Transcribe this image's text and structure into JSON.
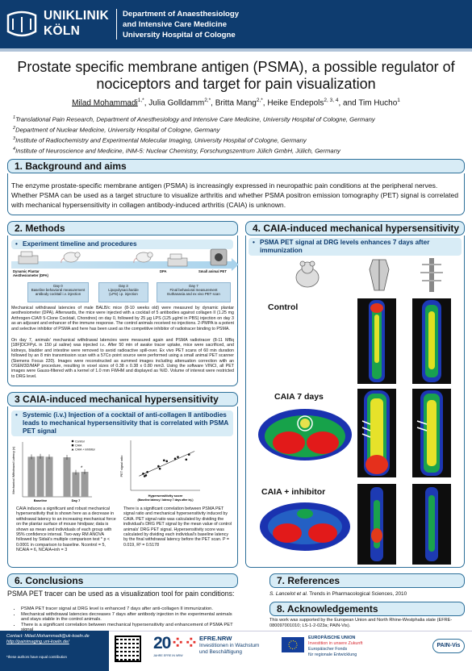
{
  "header": {
    "institution_line1": "UNIKLINIK",
    "institution_line2": "KÖLN",
    "dept_line1": "Department of Anaesthesiology",
    "dept_line2": "and Intensive Care Medicine",
    "dept_line3": "University Hospital of Cologne"
  },
  "title_line1": "Prostate specific membrane antigen (PSMA), a possible regulator of",
  "title_line2": "nociceptors and target for pain visualization",
  "authors": {
    "a1": "Milad Mohammadi",
    "a1_sup": "1,*",
    "a2": ", Julia Golldamm",
    "a2_sup": "2,*",
    "a3": ", Britta Mang",
    "a3_sup": "2,*",
    "a4": ", Heike Endepols",
    "a4_sup": "2, 3, 4",
    "a5": ", and Tim Hucho",
    "a5_sup": "1"
  },
  "affiliations": [
    {
      "num": "1",
      "text": "Translational Pain Research, Department of Anesthesiology and Intensive Care Medicine, University Hospital of Cologne, Germany"
    },
    {
      "num": "2",
      "text": "Department of Nuclear Medicine, University Hospital of Cologne, Germany"
    },
    {
      "num": "3",
      "text": "Institute of Radiochemistry and Experimental Molecular Imaging, University Hospital of Cologne, Germany"
    },
    {
      "num": "4",
      "text": "Institute of Neuroscience and Medicine, INM-5: Nuclear Chemistry, Forschungszentrum Jülich GmbH, Jülich, Germany"
    }
  ],
  "sections": {
    "s1_title": "1. Background and aims",
    "s1_text": "The enzyme prostate-specific membrane antigen (PSMA) is increasingly expressed in neuropathic pain conditions at the peripheral nerves. Whether PSMA can be used as a target structure to visualize arthritis and whether PSMA positron emission tomography (PET) signal is correlated with mechanical hypersensitivity in collagen antibody-induced arthritis (CAIA) is unknown.",
    "s2_title": "2. Methods",
    "s2_sub": "Experiment timeline and procedures",
    "s2_timeline": {
      "label_dpa": "Dynamic Plantar Aesthesiometer (DPA)",
      "label_dpa2": "DPA",
      "label_pet": "Small animal PET",
      "day0": "Day 0\nBaseline behavioral measurement\nantibody cocktail i.v. injection",
      "day3": "Day 3\nLipopolysaccharide\n(LPS) i.p. injection",
      "day7": "Day 7\nFinal behavioral measurement\nEuthanasia and ex vivo PET scan"
    },
    "s2_text1": "Mechanical withdrawal latencies of male BALB/c mice (8-10 weeks old) were measured by dynamic plantar aesthesiometer (DPA). Afterwards, the mice were injected with a cocktail of 5 antibodies against collagen II (1.25 mg Arthrogen-CIA® 5-Clone Cocktail, Chondrex) on day 0, followed by 25 µg LPS (125 µg/ml in PBS) injection on day 3 as an adjuvant and enhancer of the immune response. The control animals received no injections. 2-PMPA is a potent and selective inhibitor of PSMA and here has been used as the competitive inhibitor of radiotracer binding to PSMA.",
    "s2_text2": "On day 7, animals' mechanical withdrawal latencies were measured again and PSMA radiotracer (8-11 MBq [18F]DCFPyL in 150 µl saline) was injected i.v.. After 50 min of awake tracer uptake, mice were sacrificed, and kidneys, bladder and intestine were removed to avoid radioactive spill-over. Ex vivo PET scans of 60 min duration followed by an 8 min transmission scan with a 57Co point source were performed using a small animal PET scanner (Siemens Focus 220). Images were reconstructed as summed images including attenuation correction with an OSEM3D/MAP procedure, resulting in voxel sizes of 0.38 x 0.38 x 0.80 mm3. Using the software VINCI, all PET images were Gauss-filtered with a kernel of 1.0 mm FWHM and displayed as %ID. Volume of interest were restricted to DRG level.",
    "s3_title": "3 CAIA-induced mechanical hypersensitivity",
    "s3_sub": "Systemic (i.v.) Injection of a cocktail of anti-collagen II antibodies leads to mechanical hypersensitivity that is correlated with PSMA PET signal",
    "s3_text_left": "CAIA induces a significant and robust mechanical hypersensitivity that is shown here as a decrease in withdrawal latency to an increasing mechanical force on the plantar surface of mouse hindpaw; data is shown as mean and individuals of each group with 95% confidence interval. Two-way RM ANOVA followed by Sidak's multiple comparison test * p < 0.0001 in comparison to baseline. Ncontrol = 5, NCAIA = 6, NCAIA+inh = 3",
    "s3_text_right": "There is a significant correlation between PSMA PET signal ratio and mechanical hypersensitivity induced by CAIA. PET signal ratio was calculated by dividing the individual's DRG PET signal by the mean value of control animals' DRG PET signal. Hypersensitivity score was calculated by dividing each individual's baseline latency by the final withdrawal latency before the PET scan. P = 0.019, R² = 0.5178",
    "s4_title": "4. CAIA-induced mechanical hypersensitivity",
    "s4_sub": "PSMA PET signal at DRG levels enhances 7 days after immunization",
    "s4_label_control": "Control",
    "s4_label_caia": "CAIA 7 days",
    "s4_label_inh": "CAIA + inhibitor",
    "s6_title": "6. Conclusions",
    "s6_lead": "PSMA PET tracer can be used as a visualization tool for pain conditions:",
    "s6_bullets": [
      "PSMA PET tracer signal at DRG level is enhanced 7 days after anti-collagen II immunization.",
      "Mechanical withdrawal latencies decreases 7 days after antibody injection in the experimental animals and stays stable in the control animals.",
      "There is a significant correlation between mechanical hypersensitivity and enhancement of PSMA PET signal"
    ],
    "s7_title": "7. References",
    "s7_ref_author": "S. Lancelot et al.",
    "s7_ref_rest": " Trends in Pharmacological Sciences, 2010",
    "s8_title": "8. Acknowledgements",
    "s8_text": "This work was supported by the European Union and North Rhine-Westphalia state (EFRE-080097001010; LS-1-2-023a; PAIN-Vis)."
  },
  "bar_chart": {
    "ylabel": "Mechanical Withdrawal Latency (s)",
    "legend": [
      "Control",
      "CAIA",
      "CAIA + inhibitor"
    ],
    "categories": [
      "Baseline",
      "Day 7"
    ],
    "star": "*"
  },
  "scatter_chart": {
    "ylabel": "PET signal ratio",
    "xlabel": "Hypersensitivity score",
    "xlabel2": "(Baseline latency / latency 7 days after inj.)"
  },
  "chart_data": [
    {
      "type": "bar",
      "categories": [
        "Baseline",
        "Day 7"
      ],
      "series": [
        {
          "name": "Control",
          "values": [
            8.0,
            7.9
          ]
        },
        {
          "name": "CAIA",
          "values": [
            8.1,
            4.9
          ]
        },
        {
          "name": "CAIA + inhibitor",
          "values": [
            8.0,
            5.0
          ]
        }
      ],
      "ylabel": "Mechanical Withdrawal Latency (s)",
      "ylim": [
        0,
        10
      ],
      "legend": "top-right"
    },
    {
      "type": "scatter",
      "x": [
        0.95,
        1.0,
        1.05,
        1.1,
        1.5,
        1.55,
        1.7,
        1.8,
        2.1,
        2.2,
        2.5,
        2.6
      ],
      "y": [
        1.0,
        0.85,
        0.9,
        1.1,
        1.45,
        1.3,
        1.8,
        1.75,
        1.9,
        2.0,
        1.85,
        2.15
      ],
      "xlabel": "Hypersensitivity score",
      "ylabel": "PET signal ratio",
      "xlim": [
        0.5,
        3.0
      ],
      "ylim": [
        0,
        3
      ]
    }
  ],
  "footer": {
    "contact_label": "Contact: ",
    "contact_email": "Milad.Mohammadi@uk-koeln.de",
    "contact_url": "http://painimaging.uni-koeln.de/",
    "footnote": "*these authors have equal contribution",
    "logo20_main": "20",
    "logo20_sub": "JAHRE EFRE IN NRW",
    "efre1": "EFRE.NRW",
    "efre2": "Investitionen in Wachstum",
    "efre3": "und Beschäftigung",
    "eu1": "EUROPÄISCHE UNION",
    "eu2": "Investition in unsere Zukunft",
    "eu3": "Europäischer Fonds",
    "eu4": "für regionale Entwicklung",
    "painvis": "PAIN-Vis"
  },
  "colors": {
    "brand_navy": "#0e3c6f",
    "panel_border": "#2c6f99",
    "panel_fill": "#d8ecf6",
    "bar_fill": "#9a9a9a"
  }
}
